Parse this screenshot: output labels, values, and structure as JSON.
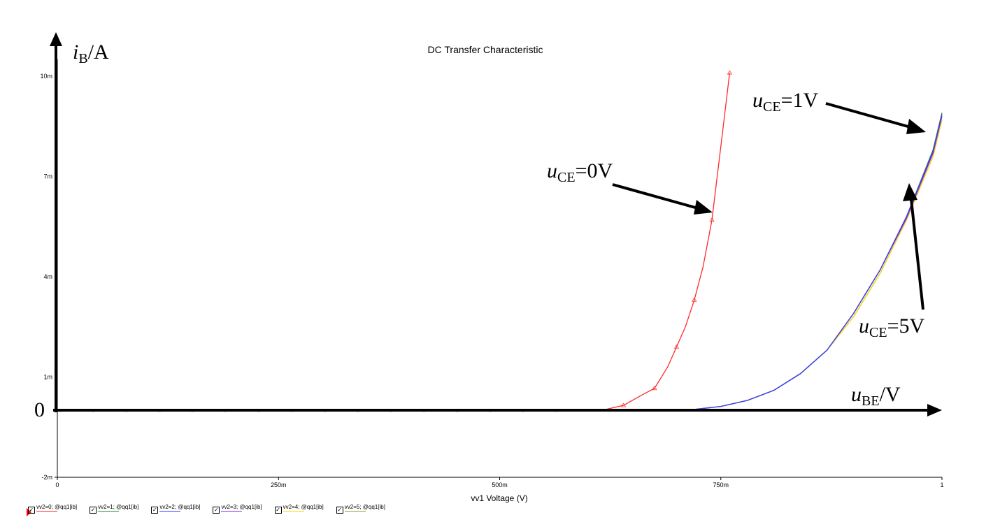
{
  "chart_data": {
    "type": "line",
    "title": "DC Transfer Characteristic",
    "xlabel": "vv1 Voltage (V)",
    "xlim": [
      0,
      1.0
    ],
    "ylim": [
      -0.002,
      0.0105
    ],
    "x_ticks": [
      {
        "value": 0,
        "label": "0"
      },
      {
        "value": 0.25,
        "label": "250m"
      },
      {
        "value": 0.5,
        "label": "500m"
      },
      {
        "value": 0.75,
        "label": "750m"
      },
      {
        "value": 1.0,
        "label": "1"
      }
    ],
    "y_ticks": [
      {
        "value": 0.01,
        "label": "10m"
      },
      {
        "value": 0.007,
        "label": "7m"
      },
      {
        "value": 0.004,
        "label": "4m"
      },
      {
        "value": 0.001,
        "label": "1m"
      },
      {
        "value": -0.002,
        "label": "-2m"
      }
    ],
    "series": [
      {
        "name": "vv2=0; @qq1[ib]",
        "color": "#ff2a2a",
        "x": [
          0.6,
          0.62,
          0.64,
          0.66,
          0.675,
          0.69,
          0.7,
          0.71,
          0.72,
          0.73,
          0.74,
          0.75,
          0.76
        ],
        "y": [
          0.0,
          3e-05,
          0.00015,
          0.00045,
          0.00066,
          0.0013,
          0.0019,
          0.0025,
          0.0033,
          0.0043,
          0.0057,
          0.0079,
          0.0101
        ]
      },
      {
        "name": "vv2=1; @qq1[ib]",
        "color": "#2e8b2e",
        "x": [
          0.69,
          0.72,
          0.75,
          0.78,
          0.81,
          0.84,
          0.87,
          0.9,
          0.93,
          0.96,
          0.99,
          1.0
        ],
        "y": [
          0.0,
          3e-05,
          0.00012,
          0.0003,
          0.0006,
          0.0011,
          0.0018,
          0.0029,
          0.0042,
          0.0058,
          0.0078,
          0.0089
        ]
      },
      {
        "name": "vv2=2; @qq1[ib]",
        "color": "#3b3bff",
        "x": [
          0.69,
          0.72,
          0.75,
          0.78,
          0.81,
          0.84,
          0.87,
          0.9,
          0.93,
          0.96,
          0.99,
          1.0
        ],
        "y": [
          0.0,
          3e-05,
          0.00012,
          0.0003,
          0.0006,
          0.0011,
          0.0018,
          0.0029,
          0.0042,
          0.0058,
          0.00775,
          0.00885
        ]
      },
      {
        "name": "vv2=3; @qq1[ib]",
        "color": "#8a2be2",
        "x": [
          0.69,
          0.72,
          0.75,
          0.78,
          0.81,
          0.84,
          0.87,
          0.9,
          0.93,
          0.96,
          0.99,
          1.0
        ],
        "y": [
          0.0,
          3e-05,
          0.00012,
          0.0003,
          0.0006,
          0.0011,
          0.0018,
          0.0029,
          0.0042,
          0.00575,
          0.0077,
          0.0088
        ]
      },
      {
        "name": "vv2=4; @qq1[ib]",
        "color": "#ffd700",
        "x": [
          0.69,
          0.72,
          0.75,
          0.78,
          0.81,
          0.84,
          0.87,
          0.9,
          0.93,
          0.96,
          0.99,
          1.0
        ],
        "y": [
          0.0,
          3e-05,
          0.00012,
          0.0003,
          0.0006,
          0.0011,
          0.0018,
          0.0028,
          0.0041,
          0.0057,
          0.0076,
          0.0087
        ]
      },
      {
        "name": "vv2=5; @qq1[ib]",
        "color": "#9b9b2a",
        "x": [
          0.69,
          0.72,
          0.75,
          0.78,
          0.81,
          0.84,
          0.87,
          0.9,
          0.93,
          0.96,
          0.99,
          1.0
        ],
        "y": [
          0.0,
          3e-05,
          0.00012,
          0.0003,
          0.0006,
          0.0011,
          0.0018,
          0.0028,
          0.0041,
          0.0057,
          0.0076,
          0.0087
        ]
      }
    ],
    "overlay": {
      "y_axis_symbol": "i",
      "y_axis_sub": "B",
      "y_axis_unit": "/A",
      "x_axis_symbol": "u",
      "x_axis_sub": "BE",
      "x_axis_unit": "/V",
      "origin": "0",
      "annotations": [
        {
          "symbol": "u",
          "sub": "CE",
          "rest": "=0V"
        },
        {
          "symbol": "u",
          "sub": "CE",
          "rest": "=1V"
        },
        {
          "symbol": "u",
          "sub": "CE",
          "rest": "=5V"
        }
      ]
    }
  }
}
